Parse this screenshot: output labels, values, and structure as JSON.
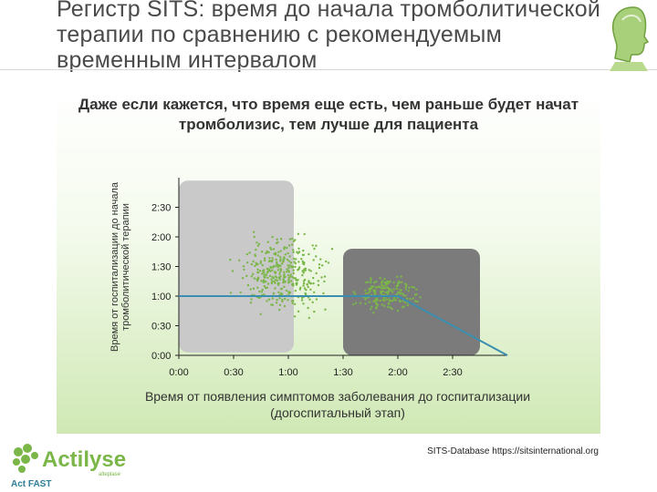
{
  "slide": {
    "title": "Регистр SITS: время до начала тромболитической терапии по сравнению с рекомендуемым временным интервалом",
    "subtitle": "Даже если кажется, что время еще есть, чем раньше будет начат тромболизис, тем лучше для пациента",
    "source": "SITS-Database https://sitsinternational.org"
  },
  "brand": {
    "name": "Actilyse",
    "tagline": "Act FAST",
    "small": "alteplase"
  },
  "colors": {
    "points": "#7ab648",
    "line": "#3a8fb0",
    "box1": "#c9c9c9",
    "box2": "#7b7b7b",
    "title": "#4a4a4a"
  },
  "chart_data": {
    "type": "scatter",
    "title": "",
    "xlabel": "Время от появления симптомов заболевания до госпитализации (догоспитальный этап)",
    "ylabel": "Время от госпитализации до начала тромболитической терапии",
    "x_ticks": [
      "0:00",
      "0:30",
      "1:00",
      "1:30",
      "2:00",
      "2:30"
    ],
    "y_ticks": [
      "0:00",
      "0:30",
      "1:00",
      "1:30",
      "2:00",
      "2:30"
    ],
    "x_range_hours": [
      0,
      3
    ],
    "y_range_hours": [
      0,
      3
    ],
    "highlight_regions": [
      {
        "x_hours": [
          0,
          1.05
        ],
        "y_hours": [
          0.05,
          2.95
        ]
      },
      {
        "x_hours": [
          1.5,
          2.75
        ],
        "y_hours": [
          0.0,
          1.8
        ]
      }
    ],
    "recommended_limit_line": [
      {
        "x": 0,
        "y": 1.0
      },
      {
        "x": 2.0,
        "y": 1.0
      },
      {
        "x": 3.0,
        "y": 0.0
      }
    ],
    "scatter_clusters": [
      {
        "x_center": 0.95,
        "x_spread": 0.45,
        "y_center": 1.35,
        "y_spread": 0.7,
        "count": 360
      },
      {
        "x_center": 1.9,
        "x_spread": 0.3,
        "y_center": 1.05,
        "y_spread": 0.35,
        "count": 170
      }
    ]
  }
}
